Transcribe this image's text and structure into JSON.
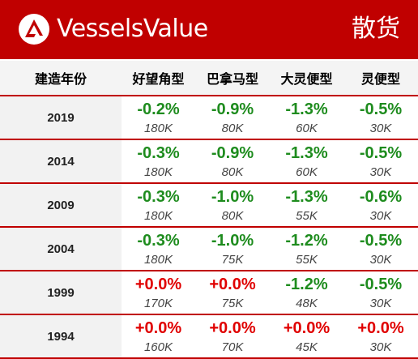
{
  "header": {
    "brand": "VesselsValue",
    "segment": "散货",
    "colors": {
      "background": "#c00000",
      "text": "#ffffff"
    },
    "logo_icon": "vesselsvalue-triangle-logo"
  },
  "table": {
    "columns": [
      "建造年份",
      "好望角型",
      "巴拿马型",
      "大灵便型",
      "灵便型"
    ],
    "colors": {
      "negative": "#1e8c1e",
      "positive": "#e00000",
      "rule": "#c00000"
    },
    "rows": [
      {
        "year": "2019",
        "cells": [
          {
            "change": "-0.2%",
            "size": "180K",
            "sign": "neg"
          },
          {
            "change": "-0.9%",
            "size": "80K",
            "sign": "neg"
          },
          {
            "change": "-1.3%",
            "size": "60K",
            "sign": "neg"
          },
          {
            "change": "-0.5%",
            "size": "30K",
            "sign": "neg"
          }
        ]
      },
      {
        "year": "2014",
        "cells": [
          {
            "change": "-0.3%",
            "size": "180K",
            "sign": "neg"
          },
          {
            "change": "-0.9%",
            "size": "80K",
            "sign": "neg"
          },
          {
            "change": "-1.3%",
            "size": "60K",
            "sign": "neg"
          },
          {
            "change": "-0.5%",
            "size": "30K",
            "sign": "neg"
          }
        ]
      },
      {
        "year": "2009",
        "cells": [
          {
            "change": "-0.3%",
            "size": "180K",
            "sign": "neg"
          },
          {
            "change": "-1.0%",
            "size": "80K",
            "sign": "neg"
          },
          {
            "change": "-1.3%",
            "size": "55K",
            "sign": "neg"
          },
          {
            "change": "-0.6%",
            "size": "30K",
            "sign": "neg"
          }
        ]
      },
      {
        "year": "2004",
        "cells": [
          {
            "change": "-0.3%",
            "size": "180K",
            "sign": "neg"
          },
          {
            "change": "-1.0%",
            "size": "75K",
            "sign": "neg"
          },
          {
            "change": "-1.2%",
            "size": "55K",
            "sign": "neg"
          },
          {
            "change": "-0.5%",
            "size": "30K",
            "sign": "neg"
          }
        ]
      },
      {
        "year": "1999",
        "cells": [
          {
            "change": "+0.0%",
            "size": "170K",
            "sign": "pos"
          },
          {
            "change": "+0.0%",
            "size": "75K",
            "sign": "pos"
          },
          {
            "change": "-1.2%",
            "size": "48K",
            "sign": "neg"
          },
          {
            "change": "-0.5%",
            "size": "30K",
            "sign": "neg"
          }
        ]
      },
      {
        "year": "1994",
        "cells": [
          {
            "change": "+0.0%",
            "size": "160K",
            "sign": "pos"
          },
          {
            "change": "+0.0%",
            "size": "70K",
            "sign": "pos"
          },
          {
            "change": "+0.0%",
            "size": "45K",
            "sign": "pos"
          },
          {
            "change": "+0.0%",
            "size": "30K",
            "sign": "pos"
          }
        ]
      }
    ]
  }
}
